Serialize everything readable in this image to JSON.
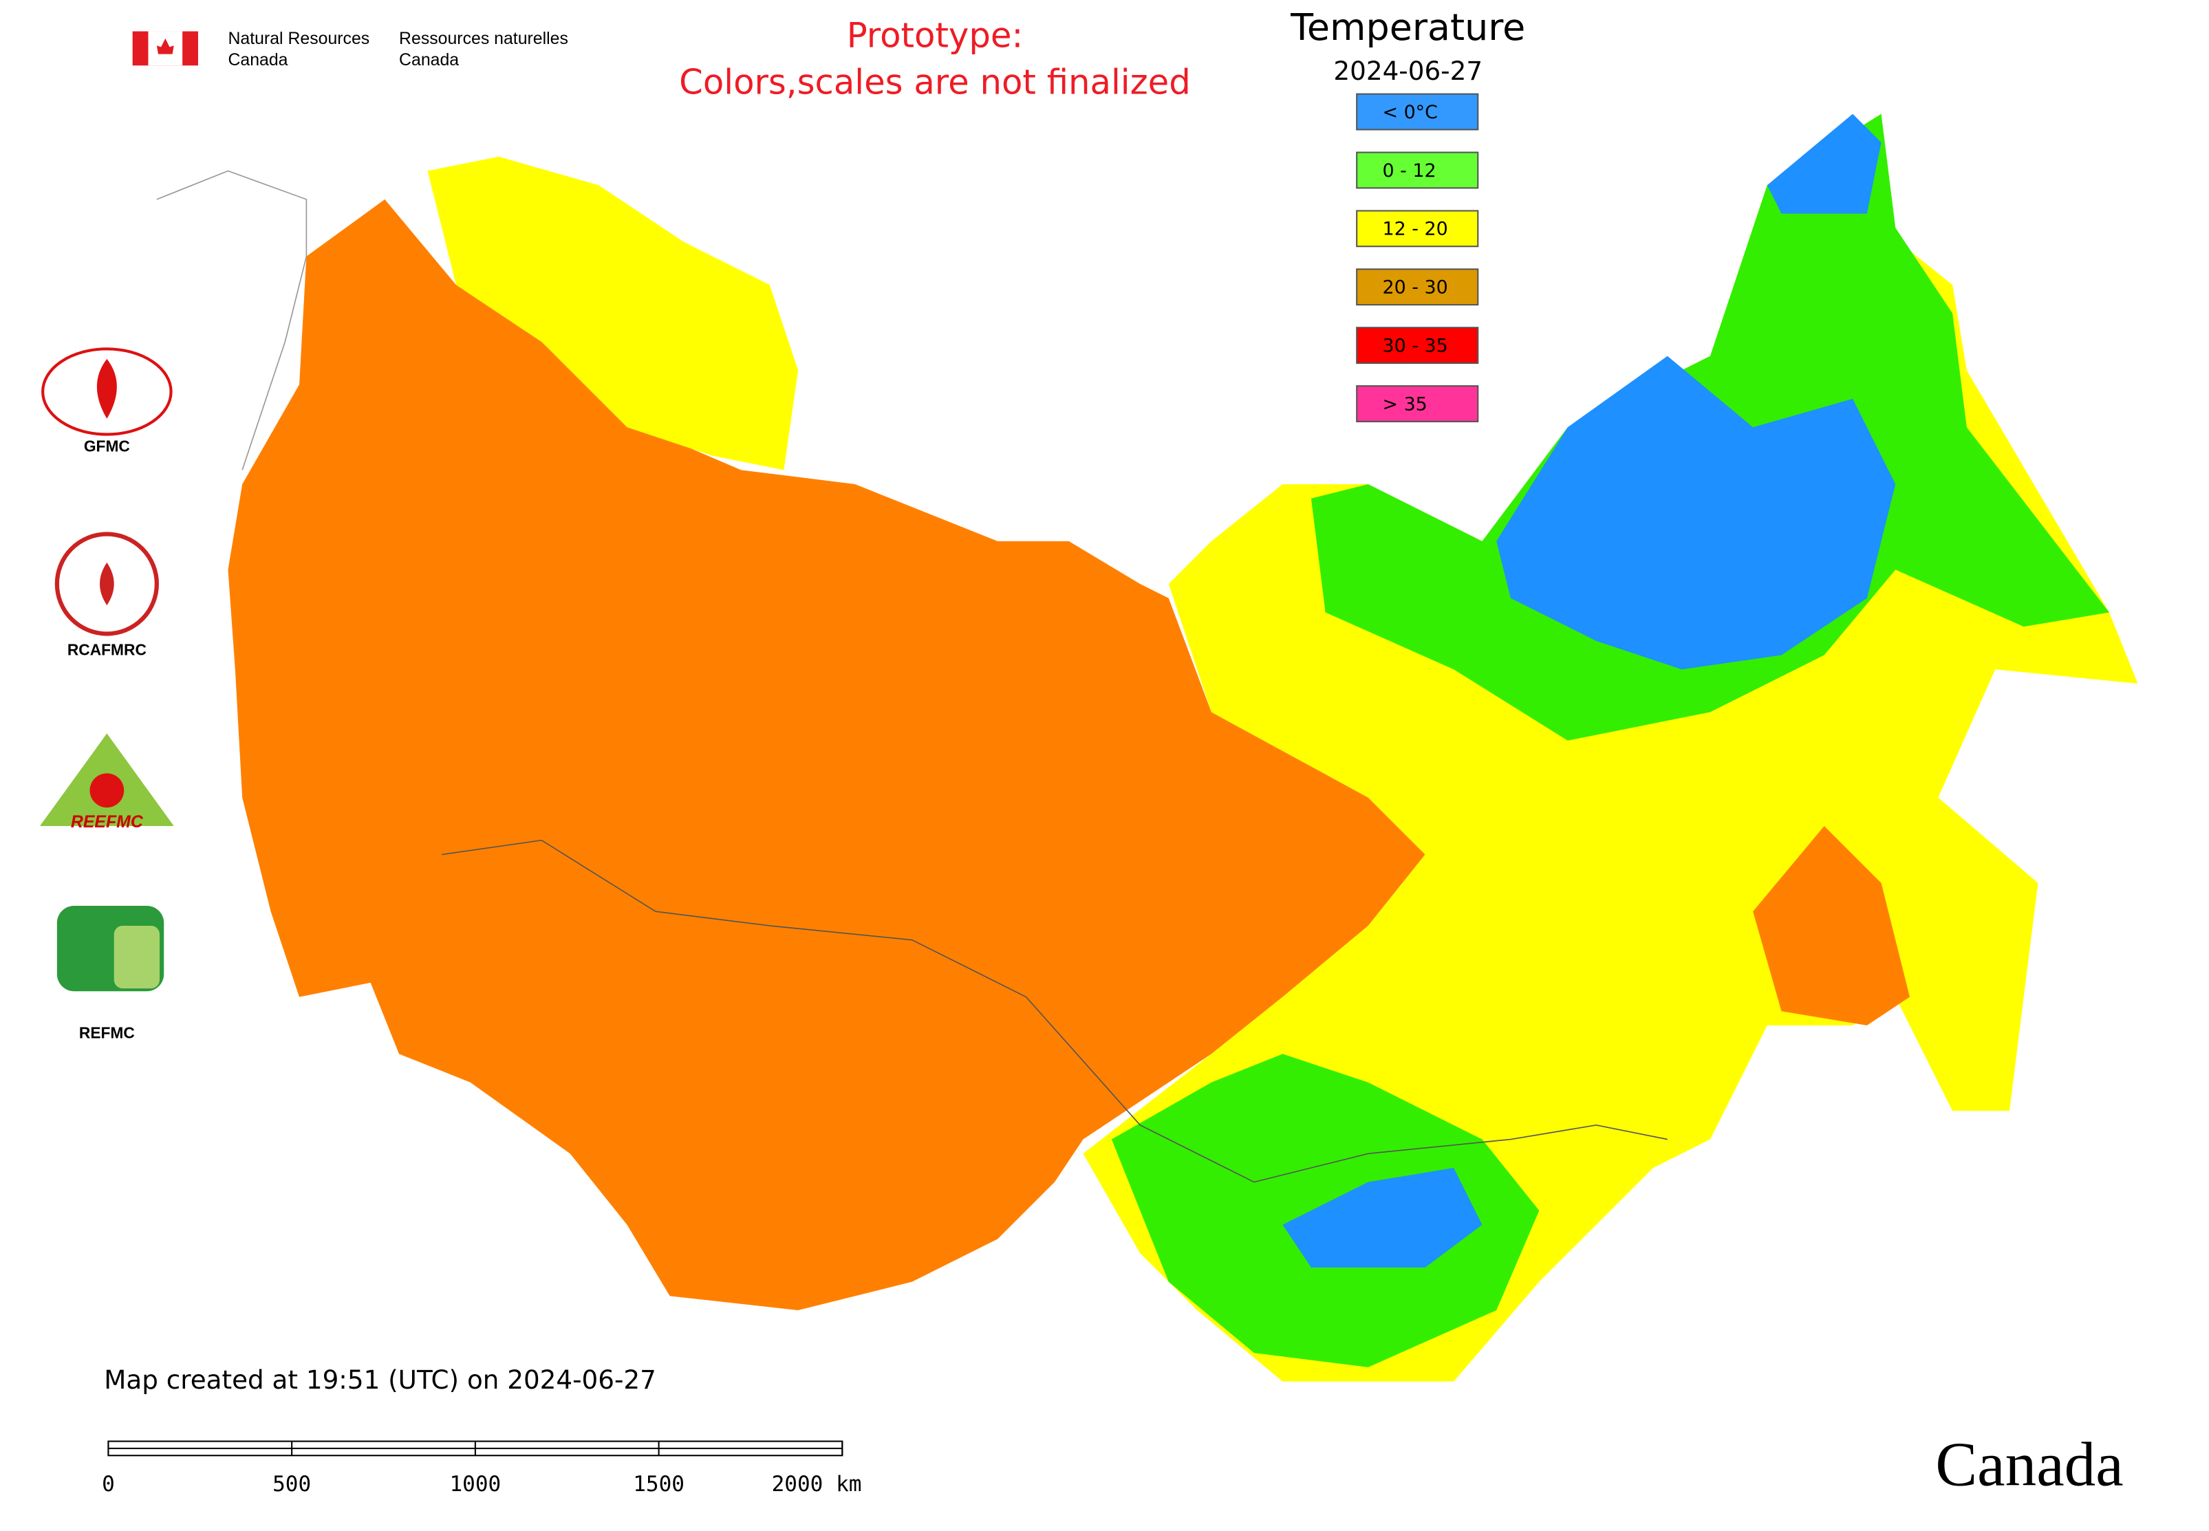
{
  "header": {
    "agency_en": [
      "Natural Resources",
      "Canada"
    ],
    "agency_fr": [
      "Ressources naturelles",
      "Canada"
    ]
  },
  "notice": [
    "Prototype:",
    "Colors,scales are not finalized"
  ],
  "legend": {
    "title": "Temperature",
    "date": "2024-06-27",
    "items": [
      {
        "label": "< 0°C",
        "color": "#3399ff"
      },
      {
        "label": "0 - 12",
        "color": "#66ff33"
      },
      {
        "label": "12 - 20",
        "color": "#ffff00"
      },
      {
        "label": "20 - 30",
        "color": "#dd9900"
      },
      {
        "label": "30 - 35",
        "color": "#ff0000"
      },
      {
        "label": "> 35",
        "color": "#ff3399"
      }
    ]
  },
  "logos": [
    "GFMC",
    "RCAFMRC",
    "REEFMC",
    "REFMC"
  ],
  "footer": {
    "created": "Map created at 19:51 (UTC) on 2024-06-27",
    "wordmark": "Canada"
  },
  "scale_bar": {
    "xlim": [
      0,
      2000
    ],
    "xticks": [
      0,
      500,
      1000,
      1500,
      {
        "value": 2000,
        "label": "2000 km"
      }
    ]
  }
}
